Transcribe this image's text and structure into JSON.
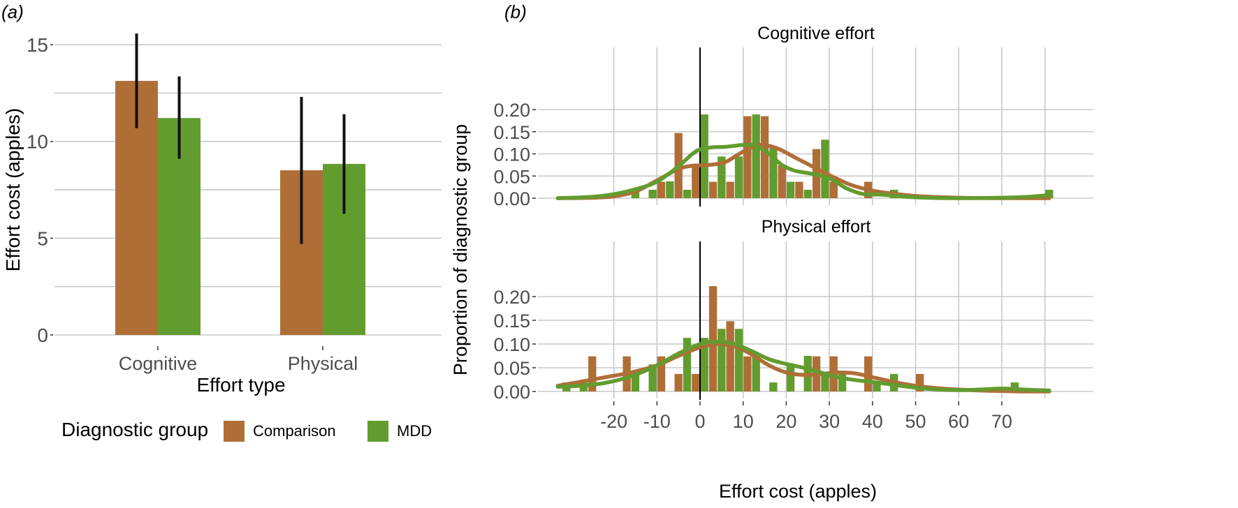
{
  "colors": {
    "comparison": "#b06e37",
    "mdd": "#629c2e",
    "grid": "#c8c8c8",
    "errorbar": "#111111",
    "zero_line": "#000000"
  },
  "legend": {
    "title": "Diagnostic group",
    "items": [
      {
        "key": "comparison",
        "label": "Comparison"
      },
      {
        "key": "mdd",
        "label": "MDD"
      }
    ],
    "position": "bottom"
  },
  "chart_data": [
    {
      "panel_label": "(a)",
      "type": "bar",
      "title": "",
      "xlabel": "Effort type",
      "ylabel": "Effort cost (apples)",
      "categories": [
        "Cognitive",
        "Physical"
      ],
      "ylim": [
        0,
        16
      ],
      "yticks": [
        0,
        5,
        10,
        15
      ],
      "ytick_labels": [
        "0",
        "5",
        "10",
        "15"
      ],
      "grid": true,
      "series": [
        {
          "name": "Comparison",
          "key": "comparison",
          "values": [
            13.13,
            8.51
          ],
          "error_low": [
            10.69,
            4.7
          ],
          "error_high": [
            15.58,
            12.3
          ]
        },
        {
          "name": "MDD",
          "key": "mdd",
          "values": [
            11.21,
            8.84
          ],
          "error_low": [
            9.1,
            6.26
          ],
          "error_high": [
            13.36,
            11.41
          ]
        }
      ]
    },
    {
      "panel_label": "(b)",
      "type": "bar",
      "subtype": "histogram with density lines, faceted",
      "xlabel": "Effort cost (apples)",
      "ylabel": "Proportion of diagnostic group",
      "xlim": [
        -33,
        83
      ],
      "xticks": [
        -20,
        -10,
        0,
        10,
        20,
        30,
        40,
        50,
        60,
        70
      ],
      "xtick_labels": [
        "-20",
        "-10",
        "0",
        "10",
        "20",
        "30",
        "40",
        "50",
        "60",
        "70"
      ],
      "ylim": [
        0,
        0.23
      ],
      "yticks": [
        0,
        0.05,
        0.1,
        0.15,
        0.2
      ],
      "ytick_labels": [
        "0.00",
        "0.05",
        "0.10",
        "0.15",
        "0.20"
      ],
      "vline_x": 0,
      "bin_width": 2,
      "grid": true,
      "facets": [
        {
          "title": "Cognitive effort",
          "histogram": {
            "comparison": {
              "x": [
                -9,
                -5,
                -1,
                3,
                7,
                11,
                15,
                19,
                23,
                27,
                31,
                39
              ],
              "y": [
                0.037,
                0.147,
                0.075,
                0.037,
                0.037,
                0.185,
                0.185,
                0.074,
                0.037,
                0.111,
                0.037,
                0.037
              ]
            },
            "mdd": {
              "x": [
                -15,
                -11,
                -7,
                -3,
                1,
                5,
                9,
                13,
                17,
                21,
                25,
                29,
                45,
                81
              ],
              "y": [
                0.019,
                0.019,
                0.038,
                0.019,
                0.189,
                0.094,
                0.094,
                0.189,
                0.113,
                0.037,
                0.019,
                0.132,
                0.019,
                0.019
              ]
            }
          },
          "density": {
            "comparison": {
              "x": [
                -33,
                -25,
                -20,
                -15,
                -10,
                -5,
                -2,
                0,
                3,
                6,
                10,
                14,
                18,
                22,
                26,
                30,
                35,
                40,
                45,
                50,
                60,
                70,
                81
              ],
              "y": [
                0.0,
                0.001,
                0.004,
                0.015,
                0.04,
                0.066,
                0.073,
                0.074,
                0.076,
                0.082,
                0.105,
                0.12,
                0.112,
                0.092,
                0.072,
                0.052,
                0.03,
                0.017,
                0.01,
                0.005,
                0.001,
                0.0,
                0.0
              ]
            },
            "mdd": {
              "x": [
                -33,
                -25,
                -20,
                -15,
                -10,
                -5,
                -2,
                0,
                3,
                6,
                10,
                13,
                16,
                19,
                22,
                26,
                30,
                34,
                38,
                42,
                50,
                60,
                70,
                76,
                81
              ],
              "y": [
                0.0,
                0.003,
                0.009,
                0.02,
                0.037,
                0.072,
                0.098,
                0.11,
                0.115,
                0.116,
                0.12,
                0.118,
                0.1,
                0.075,
                0.062,
                0.055,
                0.045,
                0.022,
                0.009,
                0.008,
                0.002,
                0.0,
                0.001,
                0.003,
                0.007
              ]
            }
          }
        },
        {
          "title": "Physical effort",
          "histogram": {
            "comparison": {
              "x": [
                -25,
                -17,
                -9,
                -5,
                -1,
                3,
                7,
                11,
                27,
                31,
                39,
                51
              ],
              "y": [
                0.074,
                0.074,
                0.074,
                0.037,
                0.037,
                0.222,
                0.148,
                0.074,
                0.074,
                0.074,
                0.074,
                0.037
              ]
            },
            "mdd": {
              "x": [
                -31,
                -27,
                -15,
                -11,
                -3,
                1,
                5,
                9,
                13,
                17,
                21,
                25,
                29,
                33,
                41,
                45,
                73
              ],
              "y": [
                0.019,
                0.019,
                0.037,
                0.057,
                0.113,
                0.113,
                0.132,
                0.132,
                0.075,
                0.019,
                0.057,
                0.075,
                0.037,
                0.037,
                0.019,
                0.037,
                0.019
              ]
            }
          },
          "density": {
            "comparison": {
              "x": [
                -33,
                -28,
                -22,
                -16,
                -10,
                -5,
                0,
                4,
                8,
                12,
                16,
                20,
                24,
                28,
                32,
                36,
                40,
                45,
                50,
                55,
                60,
                65,
                70,
                75,
                81
              ],
              "y": [
                0.012,
                0.02,
                0.03,
                0.04,
                0.055,
                0.075,
                0.093,
                0.1,
                0.095,
                0.078,
                0.055,
                0.04,
                0.035,
                0.037,
                0.04,
                0.038,
                0.03,
                0.02,
                0.012,
                0.007,
                0.004,
                0.002,
                0.001,
                0.0,
                0.0
              ]
            },
            "mdd": {
              "x": [
                -33,
                -28,
                -22,
                -16,
                -10,
                -5,
                0,
                4,
                8,
                12,
                16,
                20,
                24,
                28,
                32,
                36,
                40,
                45,
                50,
                55,
                60,
                65,
                70,
                75,
                81
              ],
              "y": [
                0.01,
                0.012,
                0.018,
                0.032,
                0.055,
                0.08,
                0.1,
                0.105,
                0.1,
                0.085,
                0.068,
                0.058,
                0.05,
                0.04,
                0.03,
                0.024,
                0.02,
                0.014,
                0.008,
                0.004,
                0.003,
                0.004,
                0.006,
                0.004,
                0.002
              ]
            }
          }
        }
      ]
    }
  ]
}
